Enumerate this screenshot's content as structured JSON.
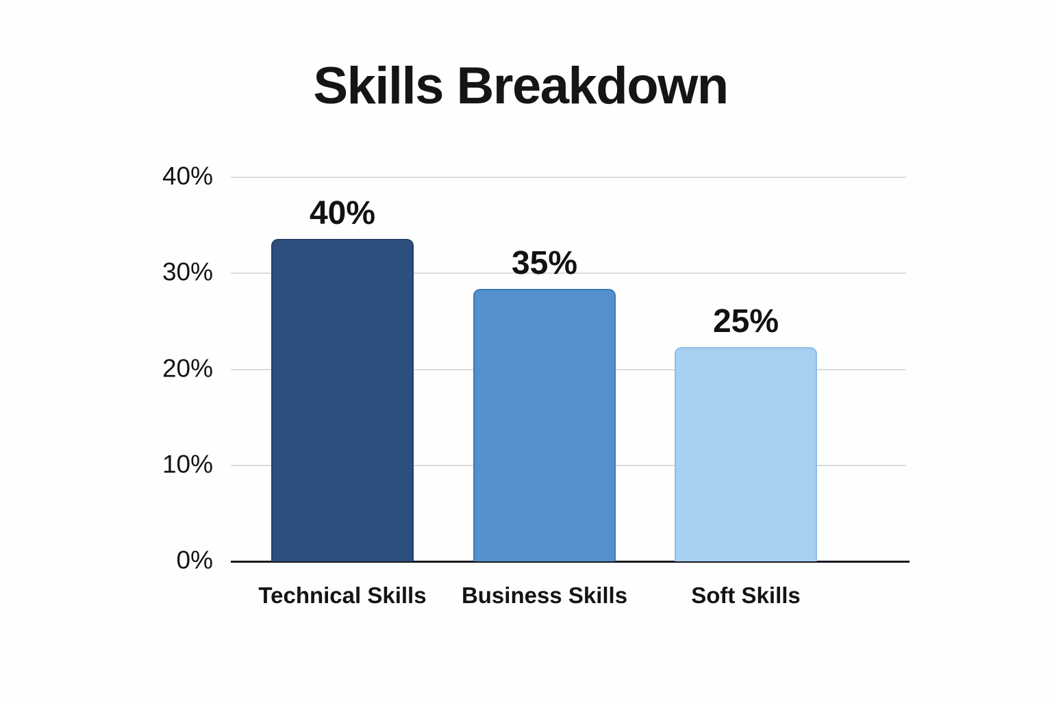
{
  "chart_data": {
    "type": "bar",
    "title": "Skills Breakdown",
    "categories": [
      "Technical Skills",
      "Business Skills",
      "Soft Skills"
    ],
    "values": [
      40,
      35,
      25
    ],
    "value_labels": [
      "40%",
      "35%",
      "25%"
    ],
    "series_colors": [
      "#2d4f7e",
      "#548fce",
      "#a6cff1"
    ],
    "bar_border_colors": [
      "#223f66",
      "#3c7ab8",
      "#8fbde9"
    ],
    "y_axis": {
      "ticks": [
        {
          "label": "40%",
          "value": 40
        },
        {
          "label": "30%",
          "value": 30
        },
        {
          "label": "20%",
          "value": 20
        },
        {
          "label": "10%",
          "value": 10
        },
        {
          "label": "0%",
          "value": 0
        }
      ],
      "ylim": [
        0,
        40
      ]
    },
    "xlabel": "",
    "ylabel": "",
    "grid": true,
    "legend": false,
    "rendered_bar_heights_pct": [
      33.6,
      28.4,
      22.3
    ],
    "text_color": "#141414",
    "gridline_color": "#dcdcdc",
    "axis_color": "#17171c",
    "background": "#fefefe"
  }
}
